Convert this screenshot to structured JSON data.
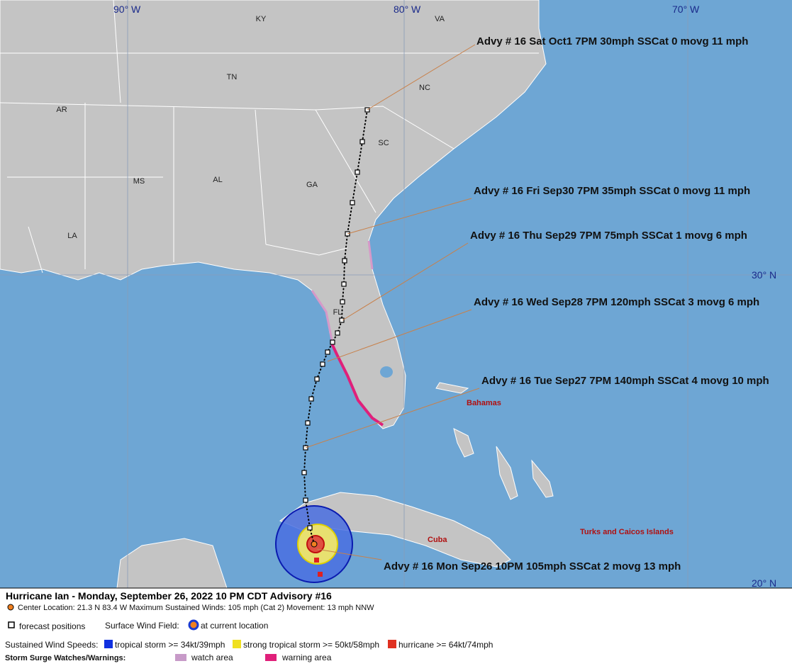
{
  "map": {
    "grid_labels": [
      "90° W",
      "80° W",
      "70° W",
      "30° N",
      "20° N"
    ],
    "state_labels": [
      "KY",
      "VA",
      "TN",
      "NC",
      "AR",
      "SC",
      "MS",
      "AL",
      "GA",
      "LA",
      "FL"
    ],
    "place_labels": [
      "Bahamas",
      "Cuba",
      "Turks and Caicos Islands"
    ],
    "advisories": [
      "Advy # 16 Sat Oct1 7PM  30mph SSCat 0 movg 11 mph",
      "Advy # 16 Fri Sep30 7PM  35mph SSCat 0 movg 11 mph",
      "Advy # 16 Thu Sep29 7PM  75mph SSCat 1 movg 6 mph",
      "Advy # 16 Wed Sep28 7PM  120mph SSCat 3 movg 6 mph",
      "Advy # 16 Tue Sep27 7PM  140mph SSCat 4 movg 10 mph",
      "Advy # 16 Mon Sep26 10PM  105mph SSCat 2 movg 13 mph"
    ]
  },
  "legend": {
    "title": "Hurricane Ian  -  Monday, September 26, 2022  10 PM CDT   Advisory #16",
    "center": "Center Location: 21.3 N  83.4 W   Maximum Sustained Winds: 105 mph (Cat 2) Movement: 13 mph NNW",
    "forecast": "forecast positions",
    "wind_field": "Surface Wind Field:",
    "current": "at current location",
    "speeds": "Sustained Wind Speeds:",
    "ts": "tropical storm >= 34kt/39mph",
    "sts": "strong tropical storm >= 50kt/58mph",
    "hu": "hurricane >= 64kt/74mph",
    "surge": "Storm Surge Watches/Warnings:",
    "watch": "watch area",
    "warning": "warning area"
  }
}
